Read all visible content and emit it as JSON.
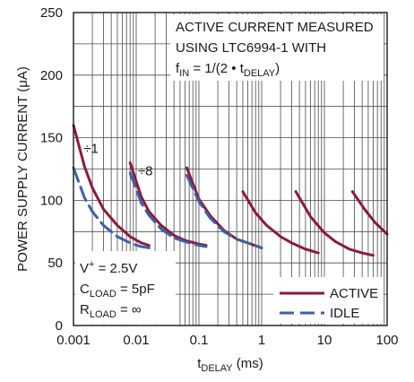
{
  "colors": {
    "active": "#8b1a3a",
    "idle": "#3e5fa8"
  },
  "chart_data": {
    "type": "line",
    "xscale": "log",
    "xlim": [
      0.001,
      100
    ],
    "ylim": [
      0,
      250
    ],
    "grid": true,
    "legend_position": "bottom-right",
    "xlabel": {
      "main": "t",
      "sub": "DELAY",
      "rest": " (ms)"
    },
    "ylabel": "POWER SUPPLY CURRENT (μA)",
    "xticks": [
      {
        "value": 0.001,
        "label": "0.001"
      },
      {
        "value": 0.01,
        "label": "0.01"
      },
      {
        "value": 0.1,
        "label": "0.1"
      },
      {
        "value": 1,
        "label": "1"
      },
      {
        "value": 10,
        "label": "10"
      },
      {
        "value": 100,
        "label": "100"
      }
    ],
    "yticks": [
      {
        "value": 0,
        "label": "0"
      },
      {
        "value": 50,
        "label": "50"
      },
      {
        "value": 100,
        "label": "100"
      },
      {
        "value": 150,
        "label": "150"
      },
      {
        "value": 200,
        "label": "200"
      },
      {
        "value": 250,
        "label": "250"
      }
    ],
    "title_lines": [
      "ACTIVE CURRENT MEASURED",
      "USING LTC6994-1 WITH",
      {
        "parts": [
          {
            "t": "f"
          },
          {
            "t": "IN",
            "sub": true
          },
          {
            "t": " = 1/(2 • t"
          },
          {
            "t": "DELAY",
            "sub": true
          },
          {
            "t": ")"
          }
        ]
      }
    ],
    "conditions": [
      {
        "parts": [
          {
            "t": "V"
          },
          {
            "t": "+",
            "sup": true
          },
          {
            "t": " = 2.5V"
          }
        ]
      },
      {
        "parts": [
          {
            "t": "C"
          },
          {
            "t": "LOAD",
            "sub": true
          },
          {
            "t": " = 5pF"
          }
        ]
      },
      {
        "parts": [
          {
            "t": "R"
          },
          {
            "t": "LOAD",
            "sub": true
          },
          {
            "t": " = ∞"
          }
        ]
      }
    ],
    "curve_labels": [
      {
        "text": "÷1",
        "x": 0.0019,
        "y": 138
      },
      {
        "text": "÷8",
        "x": 0.014,
        "y": 120
      }
    ],
    "series": [
      {
        "name": "ACTIVE",
        "color": "active",
        "dash": false,
        "segments": [
          [
            [
              0.001,
              160
            ],
            [
              0.0015,
              127
            ],
            [
              0.002,
              110
            ],
            [
              0.003,
              93
            ],
            [
              0.005,
              80
            ],
            [
              0.008,
              71
            ],
            [
              0.012,
              66
            ],
            [
              0.016,
              64
            ]
          ],
          [
            [
              0.008,
              130
            ],
            [
              0.012,
              103
            ],
            [
              0.016,
              91
            ],
            [
              0.025,
              80
            ],
            [
              0.04,
              72
            ],
            [
              0.06,
              68
            ],
            [
              0.1,
              65
            ],
            [
              0.13,
              64
            ]
          ],
          [
            [
              0.064,
              126
            ],
            [
              0.1,
              101
            ],
            [
              0.15,
              88
            ],
            [
              0.25,
              76
            ],
            [
              0.4,
              69
            ],
            [
              0.6,
              66
            ],
            [
              1,
              62
            ]
          ],
          [
            [
              0.5,
              107
            ],
            [
              0.8,
              90
            ],
            [
              1.2,
              80
            ],
            [
              2,
              71
            ],
            [
              3,
              66
            ],
            [
              5,
              61
            ],
            [
              8,
              58
            ]
          ],
          [
            [
              3.5,
              107
            ],
            [
              6,
              87
            ],
            [
              10,
              74
            ],
            [
              15,
              67
            ],
            [
              25,
              61
            ],
            [
              40,
              58
            ],
            [
              60,
              56
            ]
          ],
          [
            [
              28,
              107
            ],
            [
              45,
              92
            ],
            [
              65,
              82
            ],
            [
              100,
              73
            ]
          ]
        ]
      },
      {
        "name": "IDLE",
        "color": "idle",
        "dash": true,
        "segments": [
          [
            [
              0.001,
              126
            ],
            [
              0.0015,
              102
            ],
            [
              0.002,
              91
            ],
            [
              0.003,
              80
            ],
            [
              0.005,
              71
            ],
            [
              0.008,
              66
            ],
            [
              0.012,
              63
            ],
            [
              0.016,
              62
            ]
          ],
          [
            [
              0.008,
              122
            ],
            [
              0.012,
              98
            ],
            [
              0.016,
              88
            ],
            [
              0.025,
              77
            ],
            [
              0.04,
              70
            ],
            [
              0.06,
              67
            ],
            [
              0.1,
              64
            ],
            [
              0.13,
              63
            ]
          ],
          [
            [
              0.064,
              120
            ],
            [
              0.1,
              99
            ],
            [
              0.15,
              86
            ],
            [
              0.25,
              75
            ],
            [
              0.4,
              69
            ],
            [
              0.6,
              66
            ],
            [
              1,
              62
            ]
          ]
        ]
      }
    ]
  }
}
